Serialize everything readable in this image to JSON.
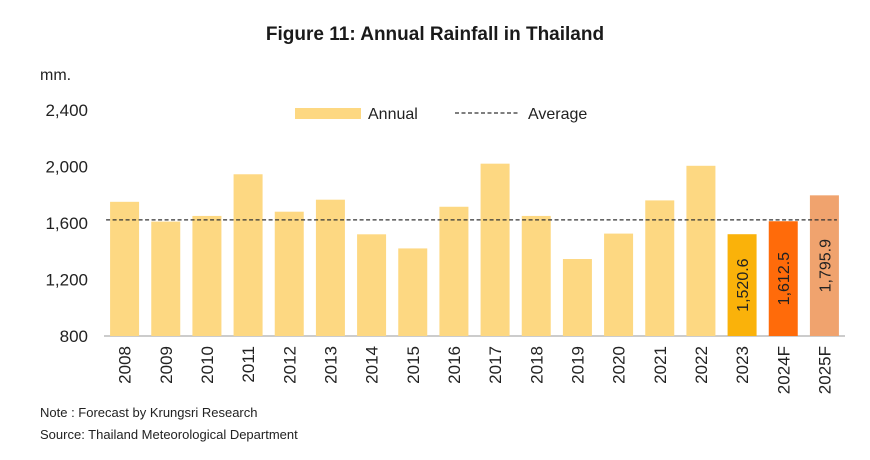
{
  "title": "Figure 11: Annual Rainfall in Thailand",
  "notes": {
    "note": "Note : Forecast by Krungsri Research",
    "source": "Source: Thailand Meteorological Department"
  },
  "colors": {
    "annual": "#FDD882",
    "f2023": "#FAB20A",
    "f2024F": "#FF6B0A",
    "f2025F": "#F0A36E",
    "average_line": "#333333"
  },
  "chart_data": {
    "type": "bar",
    "title": "Figure 11: Annual Rainfall in Thailand",
    "ylabel": "mm.",
    "xlabel": "",
    "ylim": [
      800,
      2400
    ],
    "yticks": [
      800,
      1200,
      1600,
      2000,
      2400
    ],
    "ytick_labels": [
      "800",
      "1,200",
      "1,600",
      "2,000",
      "2,400"
    ],
    "grid": false,
    "legend_position": "top-center",
    "categories": [
      "2008",
      "2009",
      "2010",
      "2011",
      "2012",
      "2013",
      "2014",
      "2015",
      "2016",
      "2017",
      "2018",
      "2019",
      "2020",
      "2021",
      "2022",
      "2023",
      "2024F",
      "2025F"
    ],
    "series": [
      {
        "name": "Annual",
        "values": [
          1750,
          1610,
          1650,
          1945,
          1680,
          1765,
          1520,
          1420,
          1715,
          2020,
          1650,
          1345,
          1525,
          1760,
          2005,
          1520.6,
          1612.5,
          1795.9
        ]
      }
    ],
    "average": {
      "name": "Average",
      "value": 1622
    },
    "data_labels": [
      {
        "category": "2023",
        "text": "1,520.6"
      },
      {
        "category": "2024F",
        "text": "1,612.5"
      },
      {
        "category": "2025F",
        "text": "1,795.9"
      }
    ]
  }
}
